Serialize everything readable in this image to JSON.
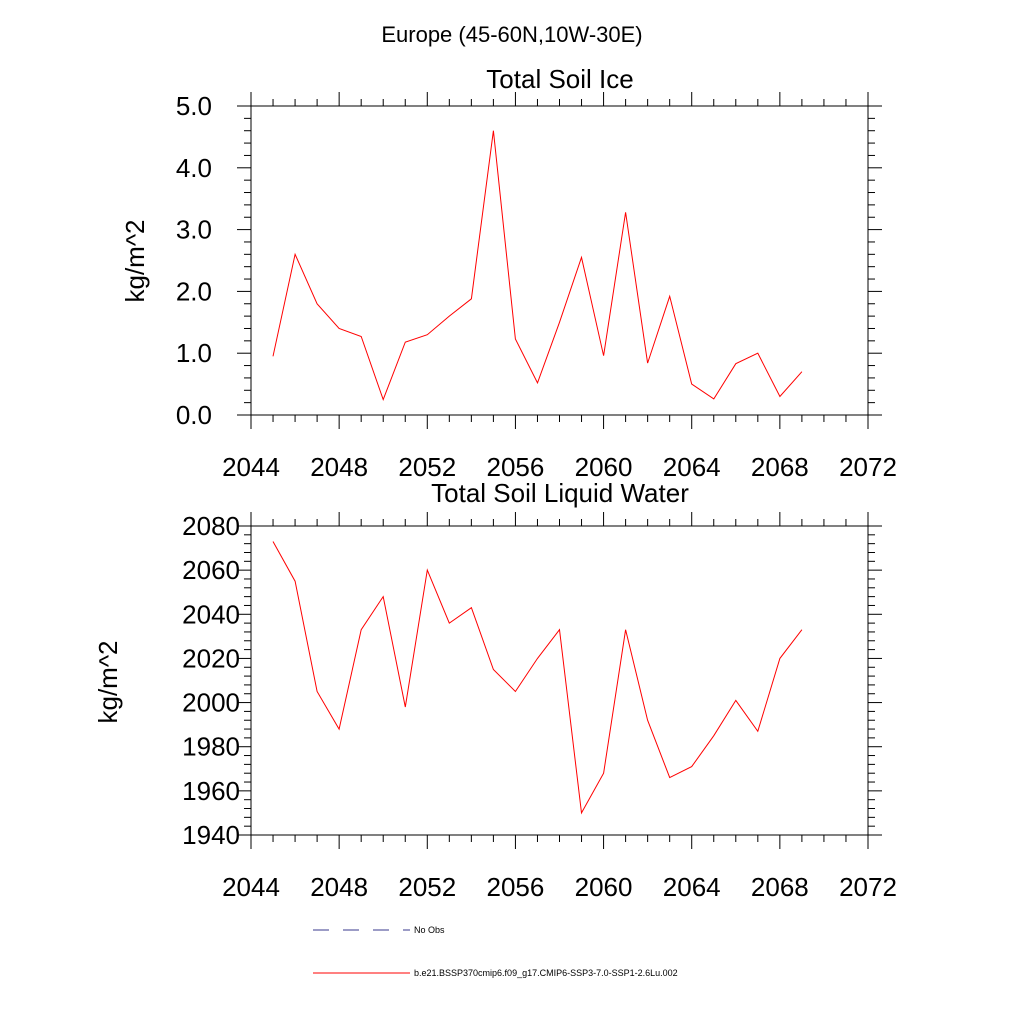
{
  "suptitle": "Europe (45-60N,10W-30E)",
  "chart_data": [
    {
      "type": "line",
      "title": "Total Soil Ice",
      "xlabel": "",
      "ylabel": "kg/m^2",
      "xlim": [
        2044,
        2072
      ],
      "ylim": [
        0,
        5
      ],
      "xticks": [
        "2044",
        "2048",
        "2052",
        "2056",
        "2060",
        "2064",
        "2068",
        "2072"
      ],
      "yticks": [
        "0.0",
        "1.0",
        "2.0",
        "3.0",
        "4.0",
        "5.0"
      ],
      "series": [
        {
          "color": "#ff0000",
          "x": [
            2045,
            2046,
            2047,
            2048,
            2049,
            2050,
            2051,
            2052,
            2053,
            2054,
            2055,
            2056,
            2057,
            2058,
            2059,
            2060,
            2061,
            2062,
            2063,
            2064,
            2065,
            2066,
            2067,
            2068,
            2069
          ],
          "y": [
            0.95,
            2.6,
            1.8,
            1.4,
            1.27,
            0.25,
            1.18,
            1.3,
            1.6,
            1.88,
            4.6,
            1.23,
            0.52,
            1.5,
            2.55,
            0.96,
            3.28,
            0.84,
            1.92,
            0.5,
            0.26,
            0.83,
            1.0,
            0.3,
            0.7
          ]
        }
      ]
    },
    {
      "type": "line",
      "title": "Total Soil Liquid Water",
      "xlabel": "",
      "ylabel": "kg/m^2",
      "xlim": [
        2044,
        2072
      ],
      "ylim": [
        1940,
        2080
      ],
      "xticks": [
        "2044",
        "2048",
        "2052",
        "2056",
        "2060",
        "2064",
        "2068",
        "2072"
      ],
      "yticks": [
        "1940",
        "1960",
        "1980",
        "2000",
        "2020",
        "2040",
        "2060",
        "2080"
      ],
      "series": [
        {
          "color": "#ff0000",
          "x": [
            2045,
            2046,
            2047,
            2048,
            2049,
            2050,
            2051,
            2052,
            2053,
            2054,
            2055,
            2056,
            2057,
            2058,
            2059,
            2060,
            2061,
            2062,
            2063,
            2064,
            2065,
            2066,
            2067,
            2068,
            2069
          ],
          "y": [
            2073,
            2055,
            2005,
            1988,
            2033,
            2048,
            1998,
            2060,
            2036,
            2043,
            2015,
            2005,
            2020,
            2033,
            1950,
            1968,
            2033,
            1992,
            1966,
            1971,
            1985,
            2001,
            1987,
            2020,
            2033
          ]
        }
      ]
    }
  ],
  "legend": [
    {
      "label": "No Obs",
      "style": "dashed",
      "color": "#3a3a8c"
    },
    {
      "label": "b.e21.BSSP370cmip6.f09_g17.CMIP6-SSP3-7.0-SSP1-2.6Lu.002",
      "style": "solid",
      "color": "#ff0000"
    }
  ]
}
